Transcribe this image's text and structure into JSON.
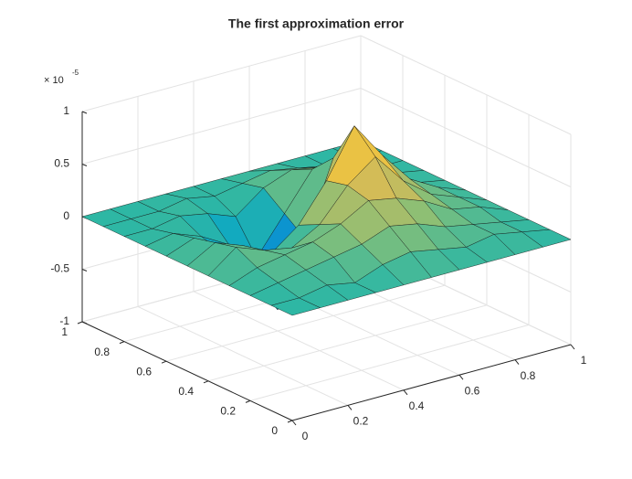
{
  "chart_data": {
    "type": "surface",
    "title": "The first approximation error",
    "z_exponent": {
      "base": "× 10",
      "power": "-5"
    },
    "x": [
      0,
      0.1,
      0.2,
      0.3,
      0.4,
      0.5,
      0.6,
      0.7,
      0.8,
      0.9,
      1
    ],
    "y": [
      0,
      0.1,
      0.2,
      0.3,
      0.4,
      0.5,
      0.6,
      0.7,
      0.8,
      0.9,
      1
    ],
    "z": [
      [
        0,
        0,
        0,
        0,
        0,
        0,
        0,
        0,
        0,
        0,
        0
      ],
      [
        0,
        0,
        0.05,
        0,
        0.1,
        0.15,
        0.1,
        0.05,
        0.1,
        0.05,
        0
      ],
      [
        0,
        0.05,
        0.1,
        0.15,
        0.2,
        0.3,
        0.25,
        0.15,
        0.1,
        0.05,
        0
      ],
      [
        0,
        0.1,
        0.15,
        0.2,
        0.3,
        0.45,
        0.4,
        0.3,
        0.15,
        0.1,
        0
      ],
      [
        0,
        0.2,
        0.1,
        0.05,
        0.2,
        0.5,
        0.7,
        0.4,
        0.2,
        0.1,
        0
      ],
      [
        0,
        0.15,
        0.05,
        -0.1,
        0.1,
        0.45,
        0.9,
        0.55,
        0.25,
        0.1,
        0
      ],
      [
        0,
        0.1,
        -0.1,
        -0.4,
        -0.8,
        -0.2,
        0.5,
        0.4,
        0.2,
        0.05,
        0
      ],
      [
        0,
        0.05,
        -0.05,
        -0.2,
        -0.4,
        -0.05,
        0.3,
        0.25,
        0.1,
        0.05,
        0
      ],
      [
        0,
        0,
        0.05,
        0,
        -0.1,
        0.1,
        0.2,
        0.15,
        0.05,
        0,
        0
      ],
      [
        0,
        0,
        0,
        0.05,
        0,
        0.05,
        0.1,
        0.05,
        0,
        0,
        0
      ],
      [
        0,
        0,
        0,
        0,
        0,
        0,
        0,
        0,
        0,
        0,
        0
      ]
    ],
    "xlim": [
      0,
      1
    ],
    "ylim": [
      0,
      1
    ],
    "zlim": [
      -1,
      1
    ],
    "xticks": [
      0,
      0.2,
      0.4,
      0.6,
      0.8,
      1
    ],
    "yticks": [
      0,
      0.2,
      0.4,
      0.6,
      0.8,
      1
    ],
    "zticks": [
      -1,
      -0.5,
      0,
      0.5,
      1
    ],
    "grid": true,
    "colormap": [
      "#352a87",
      "#0f5cdd",
      "#1481d6",
      "#06a4ca",
      "#2eb7a4",
      "#87bf77",
      "#d1bb59",
      "#fec832",
      "#f9fb0e"
    ]
  }
}
